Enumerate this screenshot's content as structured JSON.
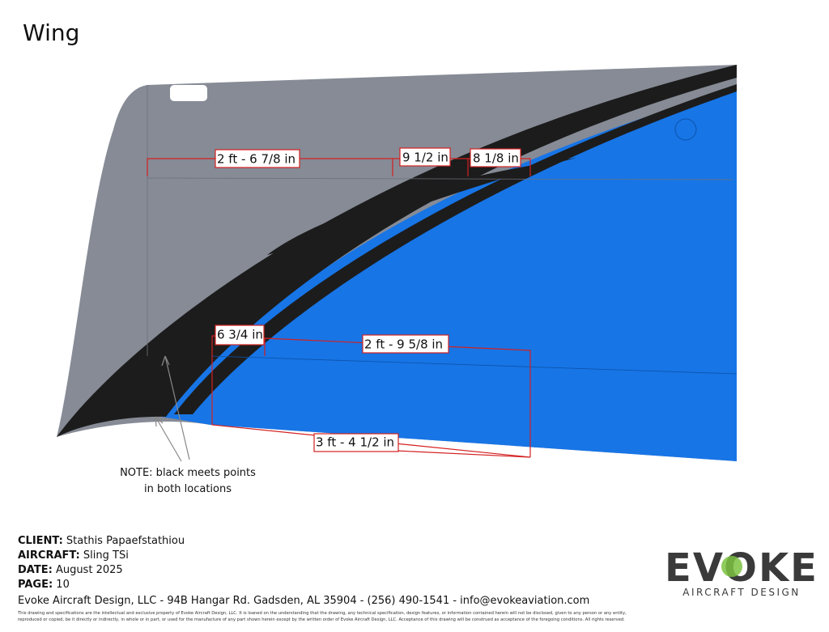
{
  "title": "Wing",
  "dimensions": [
    "2 ft - 6 7/8 in",
    "9 1/2 in",
    "8 1/8 in",
    "6 3/4 in",
    "2 ft - 9 5/8 in",
    "3 ft - 4 1/2 in"
  ],
  "note": [
    "NOTE: black meets points",
    "in both locations"
  ],
  "info": [
    {
      "label": "CLIENT:",
      "value": "Stathis Papaefstathiou"
    },
    {
      "label": "AIRCRAFT:",
      "value": "Sling TSi"
    },
    {
      "label": "DATE:",
      "value": "August 2025"
    },
    {
      "label": "PAGE:",
      "value": "10"
    }
  ],
  "footer": {
    "company": "Evoke Aircraft Design, LLC - 94B Hangar Rd. Gadsden, AL 35904 - (256) 490-1541 - info@evokeaviation.com",
    "disclaimer": [
      "This drawing and specifications are the intellectual and exclusive property of Evoke Aircraft Design, LLC. It is loaned on the understanding that the drawing, any technical specification, design features, or information contained herein will not be disclosed, given to any person or any entity,",
      "reproduced or copied, be it directly or indirectly, in whole or in part, or used for the manufacture of any part shown herein except by the written order of Evoke Aircraft Design, LLC. Acceptance of this drawing will be construed as acceptance of the foregoing conditions. All rights reserved."
    ]
  },
  "logo": {
    "name": "EVOKE",
    "subtitle": "AIRCRAFT DESIGN"
  }
}
